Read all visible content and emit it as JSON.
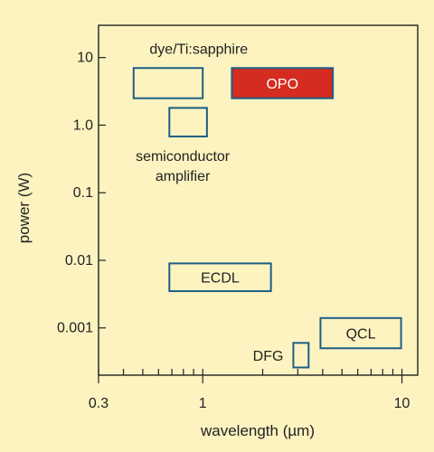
{
  "colors": {
    "background": "#fdf3c0",
    "outline": "#1d5e86",
    "highlight_fill": "#d62b20",
    "axis": "#222222"
  },
  "chart_data": {
    "type": "range-boxes",
    "xlabel": "wavelength (µm)",
    "ylabel": "power (W)",
    "xscale": "log",
    "yscale": "log",
    "xlim": [
      0.3,
      12
    ],
    "ylim": [
      0.0002,
      30
    ],
    "xticks": [
      {
        "value": 0.3,
        "label": "0.3"
      },
      {
        "value": 1,
        "label": "1"
      },
      {
        "value": 10,
        "label": "10"
      }
    ],
    "yticks": [
      {
        "value": 10,
        "label": "10"
      },
      {
        "value": 1,
        "label": "1.0"
      },
      {
        "value": 0.1,
        "label": "0.1"
      },
      {
        "value": 0.01,
        "label": "0.01"
      },
      {
        "value": 0.001,
        "label": "0.001"
      }
    ],
    "grid": false,
    "regions": [
      {
        "name": "dye/Ti:sapphire",
        "x": [
          0.45,
          1.0
        ],
        "y": [
          2.5,
          7.0
        ],
        "filled": false,
        "label_position": "above"
      },
      {
        "name": "OPO",
        "x": [
          1.4,
          4.5
        ],
        "y": [
          2.5,
          7.0
        ],
        "filled": true,
        "label_position": "inside"
      },
      {
        "name": "semiconductor amplifier",
        "x": [
          0.68,
          1.05
        ],
        "y": [
          0.68,
          1.8
        ],
        "filled": false,
        "label_position": "below"
      },
      {
        "name": "ECDL",
        "x": [
          0.68,
          2.2
        ],
        "y": [
          0.0035,
          0.009
        ],
        "filled": false,
        "label_position": "inside"
      },
      {
        "name": "QCL",
        "x": [
          3.9,
          9.9
        ],
        "y": [
          0.0005,
          0.0014
        ],
        "filled": false,
        "label_position": "inside"
      },
      {
        "name": "DFG",
        "x": [
          2.85,
          3.4
        ],
        "y": [
          0.00026,
          0.0006
        ],
        "filled": false,
        "label_position": "left"
      }
    ]
  }
}
